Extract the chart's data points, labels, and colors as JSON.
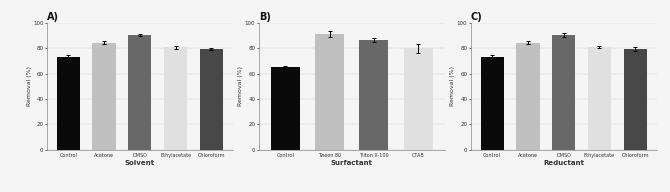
{
  "panels": [
    {
      "label": "A)",
      "xlabel": "Solvent",
      "ylabel": "Removal (%)",
      "categories": [
        "Control",
        "Acetone",
        "DMSO",
        "Ethylacetate",
        "Chloroform"
      ],
      "values": [
        73.5,
        84.5,
        90.5,
        81.0,
        79.5
      ],
      "errors": [
        1.0,
        1.2,
        1.0,
        1.2,
        0.8
      ],
      "colors": [
        "#0a0a0a",
        "#c0c0c0",
        "#686868",
        "#e0e0e0",
        "#484848"
      ],
      "ylim": [
        0,
        100
      ],
      "yticks": [
        0,
        20,
        40,
        60,
        80,
        100
      ]
    },
    {
      "label": "B)",
      "xlabel": "Surfactant",
      "ylabel": "Removal (%)",
      "categories": [
        "Control",
        "Tween 80",
        "Triton X-100",
        "CTAB"
      ],
      "values": [
        65.0,
        91.5,
        86.5,
        80.0
      ],
      "errors": [
        1.0,
        2.5,
        1.5,
        3.5
      ],
      "colors": [
        "#0a0a0a",
        "#c0c0c0",
        "#686868",
        "#e0e0e0"
      ],
      "ylim": [
        0,
        100
      ],
      "yticks": [
        0,
        20,
        40,
        60,
        80,
        100
      ]
    },
    {
      "label": "C)",
      "xlabel": "Reductant",
      "ylabel": "Removal (%)",
      "categories": [
        "Control",
        "Acetone",
        "DMSO",
        "Ethylacetate",
        "Chloroform"
      ],
      "values": [
        73.5,
        84.5,
        90.5,
        81.0,
        79.5
      ],
      "errors": [
        1.5,
        1.0,
        1.5,
        1.0,
        1.5
      ],
      "colors": [
        "#0a0a0a",
        "#c0c0c0",
        "#686868",
        "#e0e0e0",
        "#484848"
      ],
      "ylim": [
        0,
        100
      ],
      "yticks": [
        0,
        20,
        40,
        60,
        80,
        100
      ]
    }
  ],
  "figure_width": 6.7,
  "figure_height": 1.92,
  "dpi": 100,
  "bg_color": "#f5f5f5"
}
